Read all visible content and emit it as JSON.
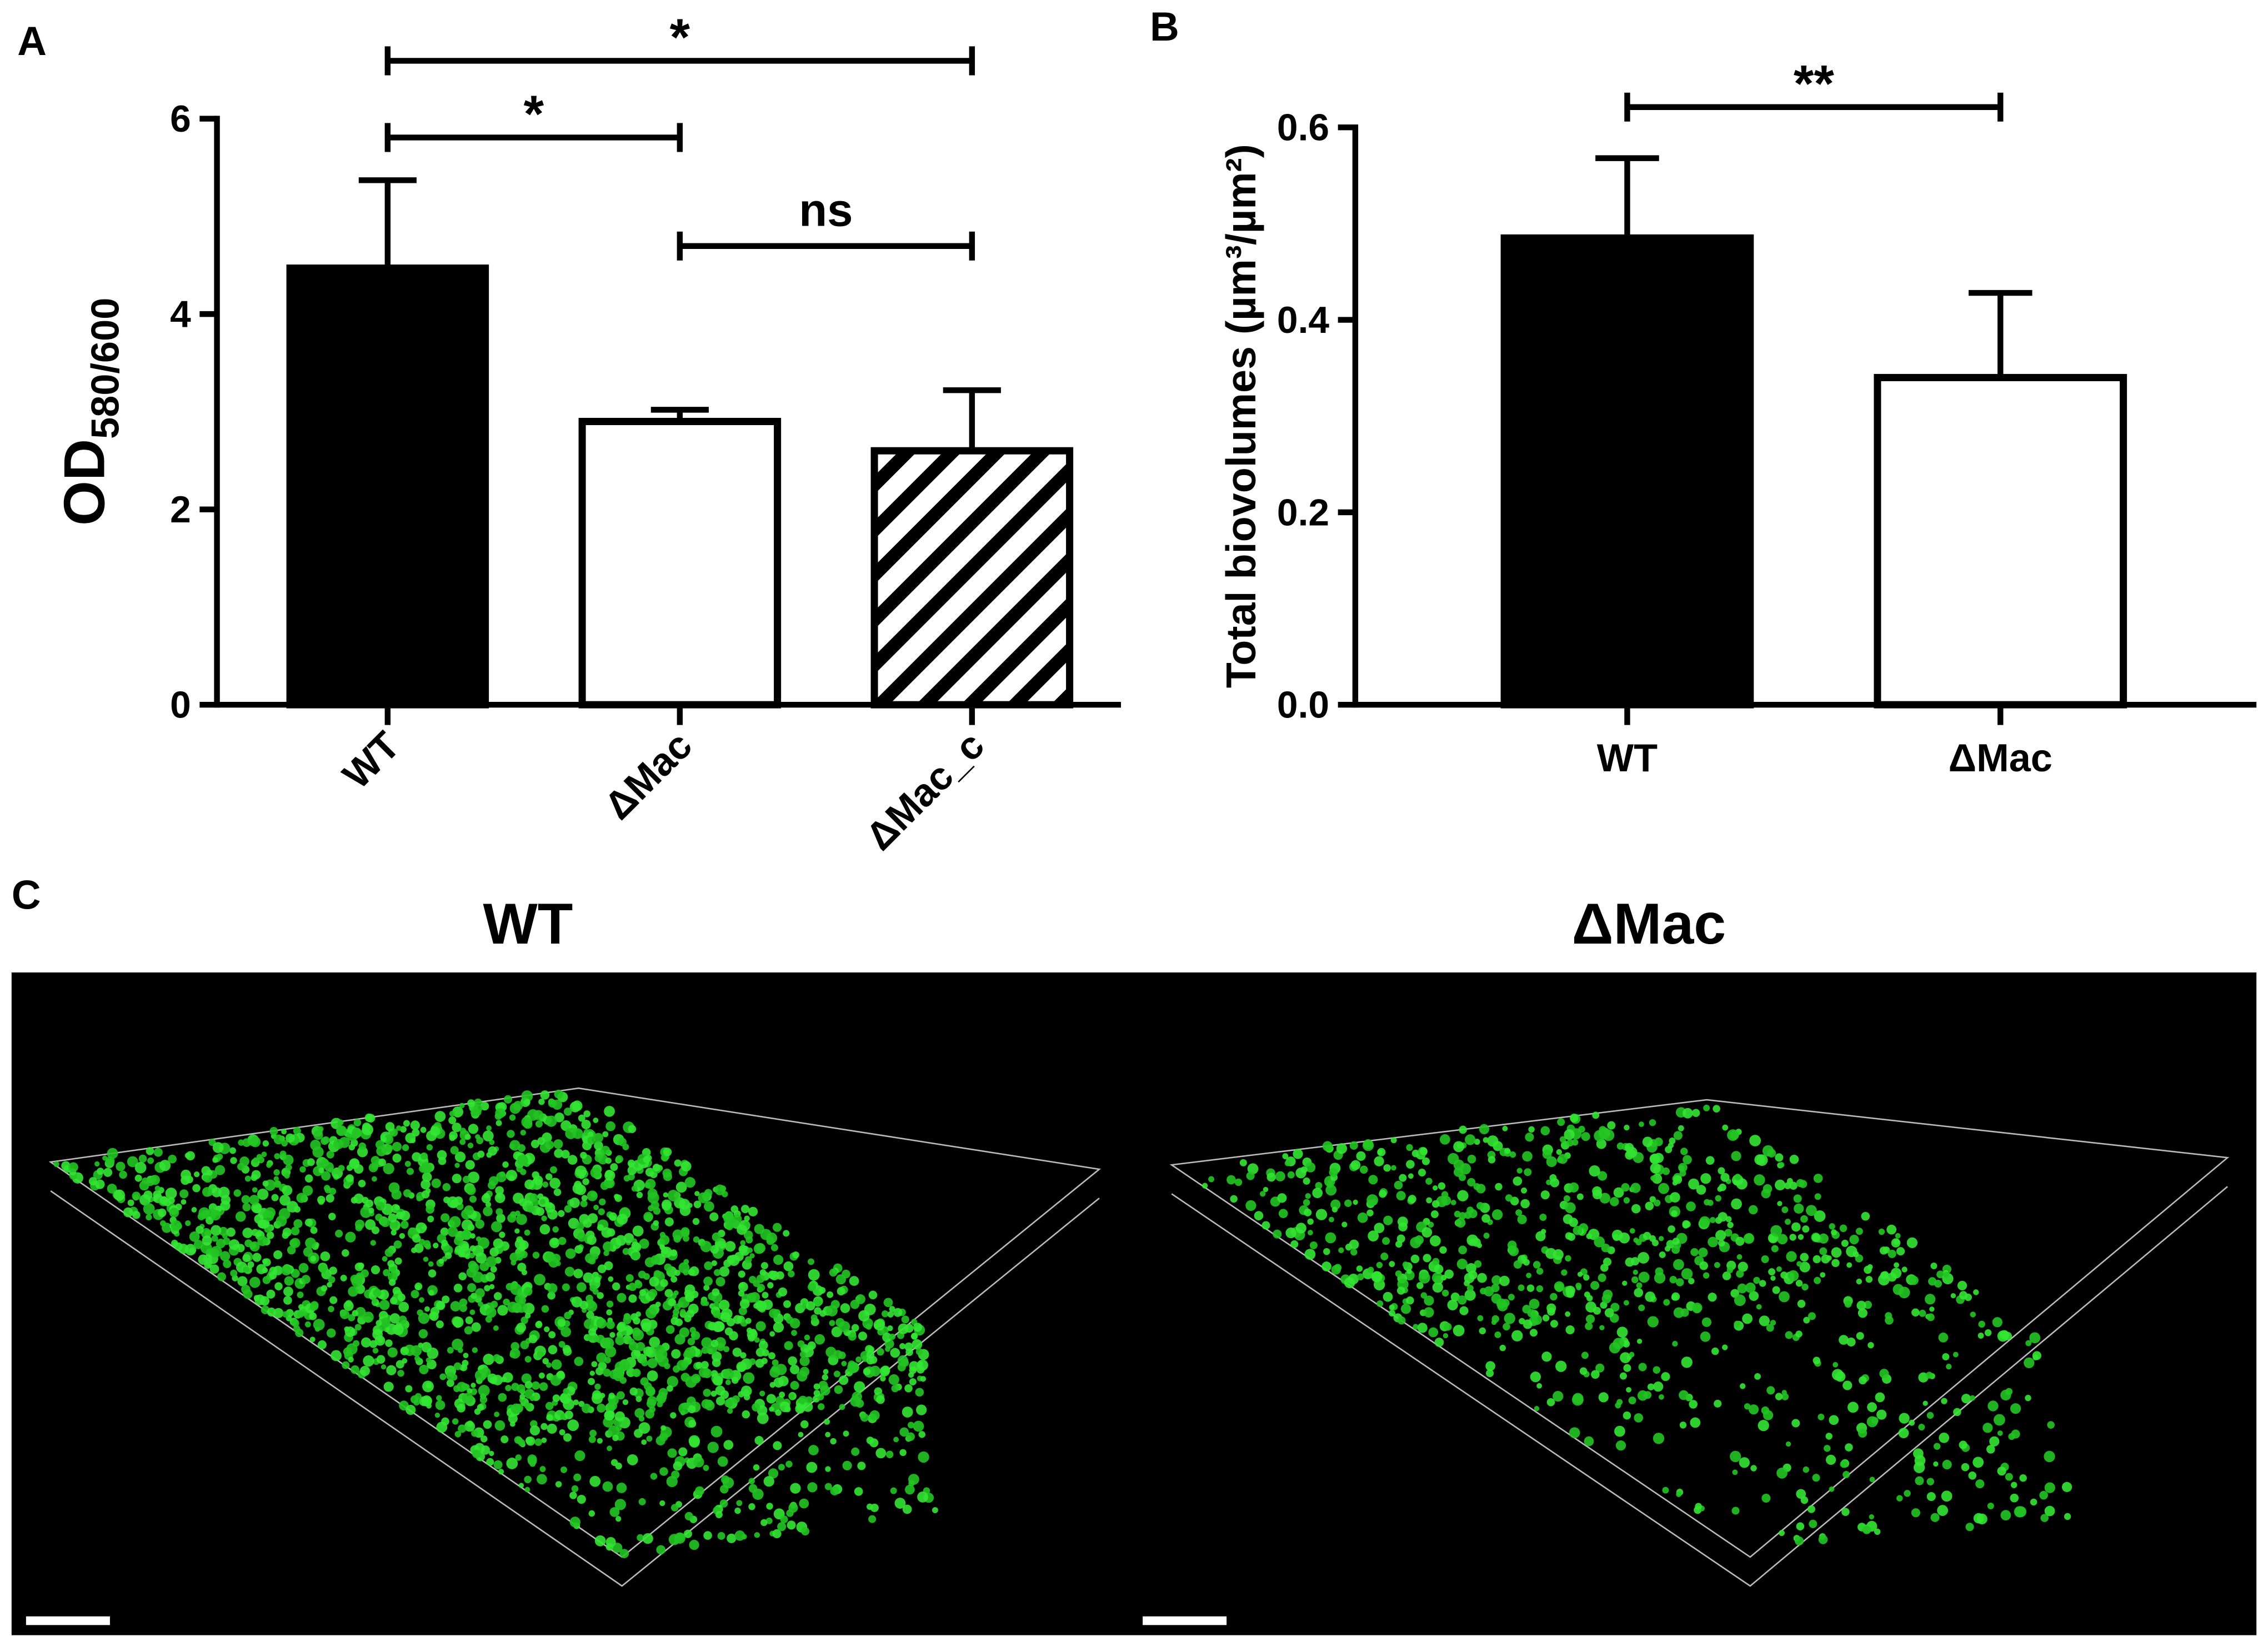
{
  "panel_labels": [
    "A",
    "B",
    "C"
  ],
  "chart_data": [
    {
      "type": "bar",
      "ylabel": "OD",
      "ylabel_sub": "580/600",
      "categories": [
        "WT",
        "ΔMac",
        "ΔMac_c"
      ],
      "values": [
        4.47,
        2.9,
        2.6
      ],
      "errors": [
        0.9,
        0.12,
        0.62
      ],
      "fills": [
        "#000000",
        "#ffffff",
        "hatch"
      ],
      "ylim": [
        0,
        6
      ],
      "yticks": [
        0,
        2,
        4,
        6
      ],
      "annotations": [
        {
          "text": "*",
          "from": 0,
          "to": 1
        },
        {
          "text": "*",
          "from": 0,
          "to": 2
        },
        {
          "text": "ns",
          "from": 1,
          "to": 2
        }
      ]
    },
    {
      "type": "bar",
      "ylabel": "Total biovolumes (µm³/µm²)",
      "categories": [
        "WT",
        "ΔMac"
      ],
      "values": [
        0.485,
        0.34
      ],
      "errors": [
        0.083,
        0.088
      ],
      "fills": [
        "#000000",
        "#ffffff"
      ],
      "ylim": [
        0,
        0.6
      ],
      "yticks": [
        {
          "value": 0,
          "label": "0.0"
        },
        0.2,
        0.4,
        0.6
      ],
      "annotations": [
        {
          "text": "**",
          "from": 0,
          "to": 1
        }
      ]
    }
  ],
  "images": [
    {
      "title": "WT"
    },
    {
      "title": "ΔMac"
    }
  ]
}
